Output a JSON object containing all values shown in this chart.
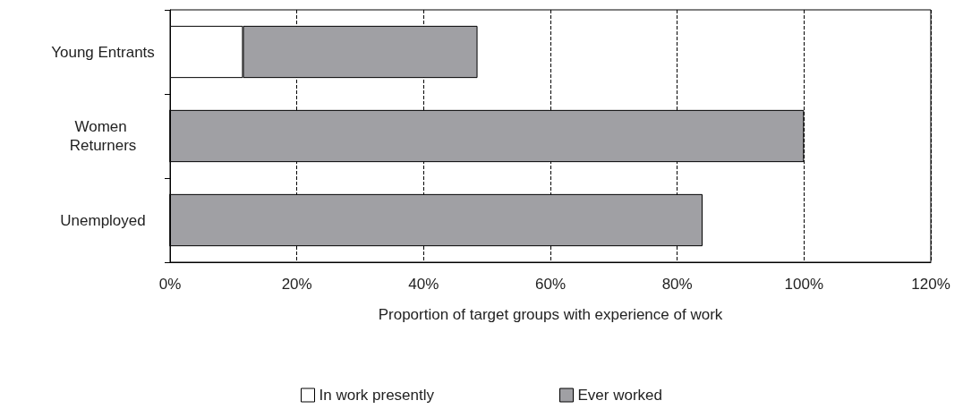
{
  "chart_data": {
    "type": "bar",
    "orientation": "horizontal",
    "stacked": true,
    "categories": [
      "Young Entrants",
      "Women Returners",
      "Unemployed"
    ],
    "series": [
      {
        "name": "In work presently",
        "color": "#ffffff",
        "values": [
          11.5,
          0,
          0
        ]
      },
      {
        "name": "Ever worked",
        "color": "#a0a0a4",
        "values": [
          37,
          100,
          84
        ]
      }
    ],
    "xlim": [
      0,
      120
    ],
    "xticks": [
      {
        "value": 0,
        "label": "0%"
      },
      {
        "value": 20,
        "label": "20%"
      },
      {
        "value": 40,
        "label": "40%"
      },
      {
        "value": 60,
        "label": "60%"
      },
      {
        "value": 80,
        "label": "80%"
      },
      {
        "value": 100,
        "label": "100%"
      },
      {
        "value": 120,
        "label": "120%"
      }
    ],
    "xlabel": "Proportion of target groups with experience of work",
    "grid": "x",
    "legend": "bottom"
  }
}
